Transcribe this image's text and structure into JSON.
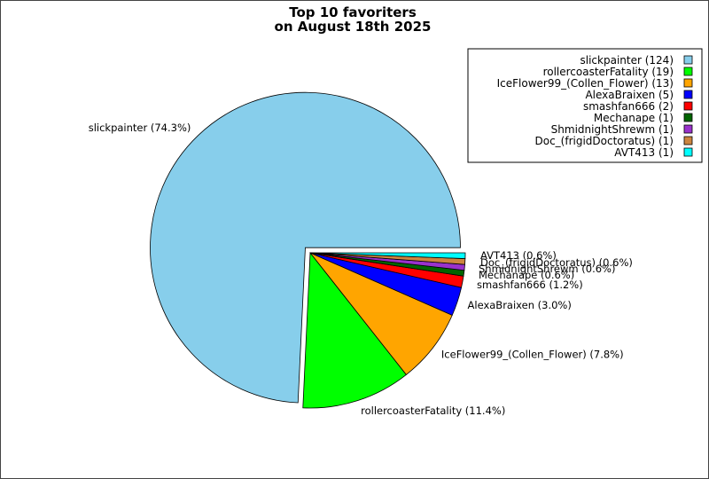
{
  "chart_data": {
    "type": "pie",
    "title": "Top 10 favoriters",
    "subtitle": "on August 18th 2025",
    "slices": [
      {
        "name": "slickpainter",
        "value": 124,
        "percent": "74.3%",
        "color": "#87ceeb"
      },
      {
        "name": "rollercoasterFatality",
        "value": 19,
        "percent": "11.4%",
        "color": "#00ff00"
      },
      {
        "name": "IceFlower99_(Collen_Flower)",
        "value": 13,
        "percent": "7.8%",
        "color": "#ffa500"
      },
      {
        "name": "AlexaBraixen",
        "value": 5,
        "percent": "3.0%",
        "color": "#0000ff"
      },
      {
        "name": "smashfan666",
        "value": 2,
        "percent": "1.2%",
        "color": "#ff0000"
      },
      {
        "name": "Mechanape",
        "value": 1,
        "percent": "0.6%",
        "color": "#006400"
      },
      {
        "name": "ShmidnightShrewm",
        "value": 1,
        "percent": "0.6%",
        "color": "#9932cc"
      },
      {
        "name": "Doc_(frigidDoctoratus)",
        "value": 1,
        "percent": "0.6%",
        "color": "#cd853f"
      },
      {
        "name": "AVT413",
        "value": 1,
        "percent": "0.6%",
        "color": "#00ffff"
      }
    ],
    "legend": {
      "placement": "top-right",
      "entries": [
        "slickpainter (124)",
        "rollercoasterFatality (19)",
        "IceFlower99_(Collen_Flower) (13)",
        "AlexaBraixen (5)",
        "smashfan666 (2)",
        "Mechanape (1)",
        "ShmidnightShrewm (1)",
        "Doc_(frigidDoctoratus) (1)",
        "AVT413 (1)"
      ]
    },
    "slice_labels": [
      "slickpainter (74.3%)",
      "rollercoasterFatality (11.4%)",
      "IceFlower99_(Collen_Flower) (7.8%)",
      "AlexaBraixen (3.0%)",
      "smashfan666 (1.2%)",
      "Mechanape (0.6%)",
      "ShmidnightShrewm (0.6%)",
      "Doc_(frigidDoctoratus) (0.6%)",
      "AVT413 (0.6%)"
    ],
    "exploded_slice": "slickpainter"
  }
}
